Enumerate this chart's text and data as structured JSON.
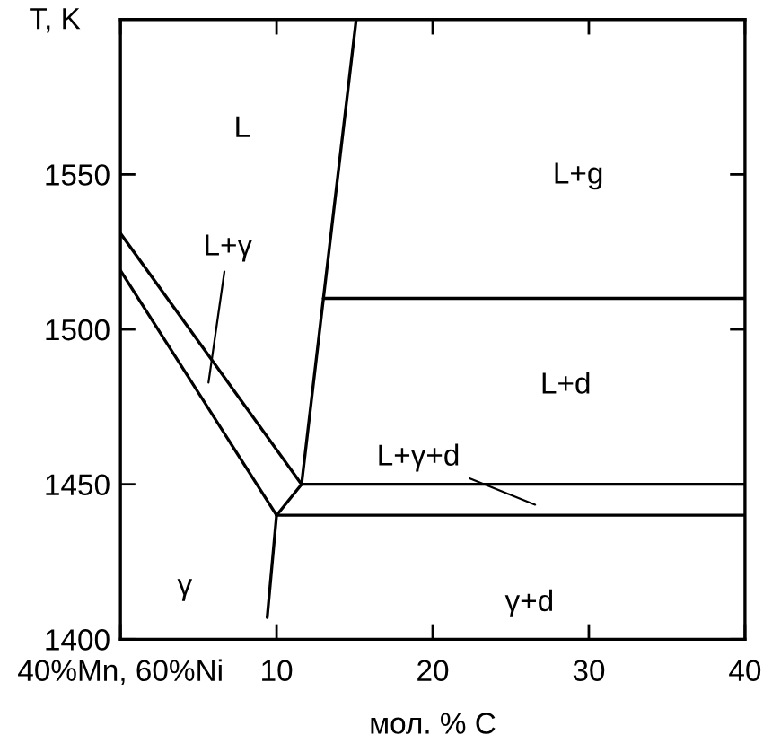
{
  "chart_data": {
    "type": "line",
    "xlabel": "мол. % C",
    "ylabel": "T, K",
    "xlim": [
      0,
      40
    ],
    "ylim": [
      1400,
      1600
    ],
    "xticks": [
      {
        "value": 0,
        "label": "40%Mn, 60%Ni"
      },
      10,
      20,
      30,
      40
    ],
    "yticks": [
      1400,
      1450,
      1500,
      1550
    ],
    "grid": false,
    "marker": "none",
    "line_style": "solid",
    "series": [
      {
        "color": "#000000",
        "x": [
          15.1,
          11.6
        ],
        "values": [
          1600,
          1450
        ]
      },
      {
        "color": "#000000",
        "x": [
          0,
          11.6
        ],
        "values": [
          1531,
          1450
        ]
      },
      {
        "color": "#000000",
        "x": [
          0,
          10
        ],
        "values": [
          1519,
          1440
        ]
      },
      {
        "color": "#000000",
        "x": [
          10,
          11.6
        ],
        "values": [
          1440,
          1450
        ]
      },
      {
        "color": "#000000",
        "x": [
          10,
          9.4
        ],
        "values": [
          1440,
          1407
        ]
      },
      {
        "color": "#000000",
        "x": [
          11.6,
          40
        ],
        "values": [
          1450,
          1450
        ]
      },
      {
        "color": "#000000",
        "x": [
          10,
          40
        ],
        "values": [
          1440,
          1440
        ]
      },
      {
        "color": "#000000",
        "x": [
          13,
          40
        ],
        "values": [
          1510,
          1510
        ]
      }
    ],
    "annotations": [
      "L",
      "L+γ",
      "L+g",
      "L+d",
      "L+γ+d",
      "γ",
      "γ+d"
    ]
  }
}
